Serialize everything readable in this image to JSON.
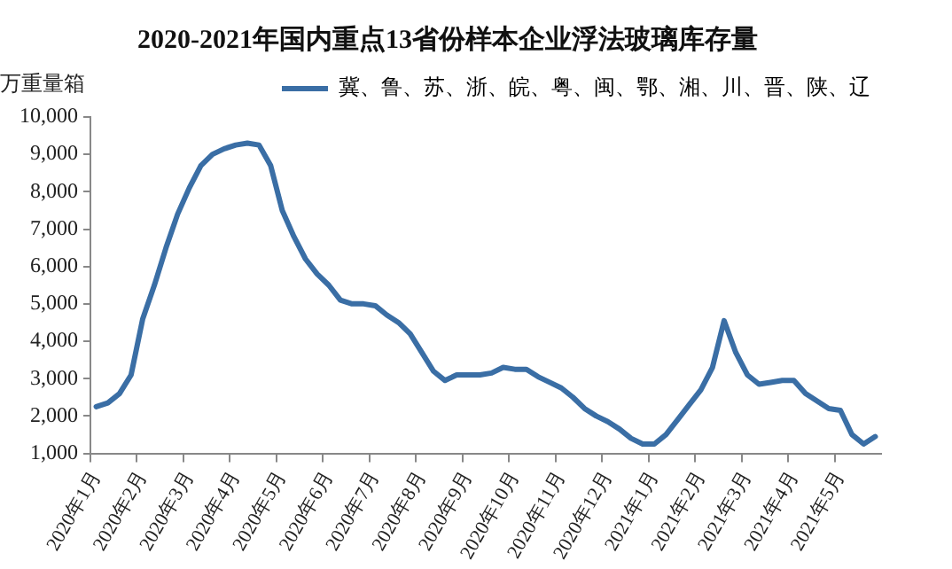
{
  "chart_data": {
    "type": "line",
    "title": "2020-2021年国内重点13省份样本企业浮法玻璃库存量",
    "ylabel": "万重量箱",
    "categories": [
      "2020年1月",
      null,
      null,
      null,
      "2020年2月",
      null,
      null,
      null,
      "2020年3月",
      null,
      null,
      null,
      "2020年4月",
      null,
      null,
      null,
      "2020年5月",
      null,
      null,
      null,
      "2020年6月",
      null,
      null,
      null,
      "2020年7月",
      null,
      null,
      null,
      "2020年8月",
      null,
      null,
      null,
      "2020年9月",
      null,
      null,
      null,
      "2020年10月",
      null,
      null,
      null,
      "2020年11月",
      null,
      null,
      null,
      "2020年12月",
      null,
      null,
      null,
      "2021年1月",
      null,
      null,
      null,
      "2021年2月",
      null,
      null,
      null,
      "2021年3月",
      null,
      null,
      null,
      "2021年4月",
      null,
      null,
      null,
      "2021年5月",
      null,
      null,
      null
    ],
    "series": [
      {
        "name": "冀、鲁、苏、浙、皖、粤、闽、鄂、湘、川、晋、陕、辽",
        "color": "#3a6ea5",
        "values": [
          2250,
          2350,
          2600,
          3100,
          4600,
          5500,
          6500,
          7400,
          8100,
          8700,
          9000,
          9150,
          9250,
          9300,
          9250,
          8700,
          7500,
          6800,
          6200,
          5800,
          5500,
          5100,
          5000,
          5000,
          4950,
          4700,
          4500,
          4200,
          3700,
          3200,
          2950,
          3100,
          3100,
          3100,
          3150,
          3300,
          3250,
          3250,
          3050,
          2900,
          2750,
          2500,
          2200,
          2000,
          1850,
          1650,
          1400,
          1250,
          1250,
          1500,
          1900,
          2300,
          2700,
          3300,
          4550,
          3700,
          3100,
          2850,
          2900,
          2950,
          2950,
          2600,
          2400,
          2200,
          2150,
          1500,
          1250,
          1450
        ]
      }
    ],
    "ylim": [
      1000,
      10000
    ],
    "yticks": [
      {
        "value": 1000,
        "label": "1,000"
      },
      {
        "value": 2000,
        "label": "2,000"
      },
      {
        "value": 3000,
        "label": "3,000"
      },
      {
        "value": 4000,
        "label": "4,000"
      },
      {
        "value": 5000,
        "label": "5,000"
      },
      {
        "value": 6000,
        "label": "6,000"
      },
      {
        "value": 7000,
        "label": "7,000"
      },
      {
        "value": 8000,
        "label": "8,000"
      },
      {
        "value": 9000,
        "label": "9,000"
      },
      {
        "value": 10000,
        "label": "10,000"
      }
    ],
    "grid": false,
    "legend": "top",
    "marker": "none",
    "line_style": "solid"
  }
}
